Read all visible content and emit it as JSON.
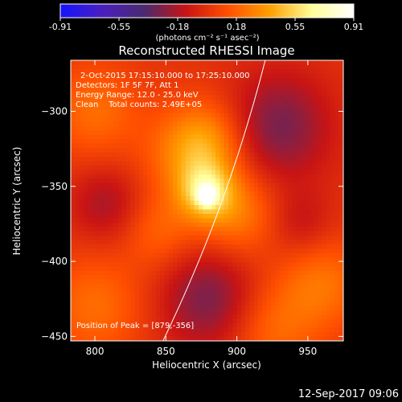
{
  "colorbar": {
    "ticks": [
      "-0.91",
      "-0.55",
      "-0.18",
      "0.18",
      "0.55",
      "0.91"
    ],
    "unit_label": "(photons cm⁻² s⁻¹ asec⁻²)",
    "range": [
      -0.91,
      0.91
    ],
    "stops": [
      "#1414ff",
      "#4a1fbe",
      "#4a2a70",
      "#c81414",
      "#ff5000",
      "#ffa000",
      "#ffff9a",
      "#ffffff"
    ]
  },
  "chart_data": {
    "type": "heatmap",
    "title": "Reconstructed RHESSI Image",
    "xlabel": "Heliocentric X (arcsec)",
    "ylabel": "Heliocentric Y (arcsec)",
    "xlim": [
      783,
      975
    ],
    "ylim": [
      -453,
      -266
    ],
    "xticks": [
      800,
      850,
      900,
      950
    ],
    "yticks": [
      -300,
      -350,
      -400,
      -450
    ],
    "xtick_labels": [
      "800",
      "850",
      "900",
      "950"
    ],
    "ytick_labels": [
      "−300",
      "−350",
      "−400",
      "−450"
    ],
    "peak": {
      "x": 879,
      "y": -356,
      "value": 0.91
    },
    "annotations": [
      "2-Oct-2015 17:15:10.000 to 17:25:10.000",
      "Detectors: 1F 5F 7F, Att 1",
      "Energy Range: 12.0 - 25.0 keV",
      "Clean    Total counts: 2.49E+05"
    ],
    "peak_label": "Position of Peak = [879,-356]",
    "components": [
      {
        "kind": "core",
        "x": 879,
        "y": -356,
        "amplitude": 0.8,
        "sigma": 4
      },
      {
        "kind": "bright halo",
        "x": 878,
        "y": -354,
        "amplitude": 0.42,
        "sigma": 13
      },
      {
        "kind": "red ridge",
        "x": 868,
        "y": -330,
        "amplitude": 0.3,
        "sigma": 22
      },
      {
        "kind": "red ridge",
        "x": 900,
        "y": -368,
        "amplitude": 0.27,
        "sigma": 20
      },
      {
        "kind": "red ridge",
        "x": 880,
        "y": -318,
        "amplitude": 0.2,
        "sigma": 18
      },
      {
        "kind": "red ridge",
        "x": 845,
        "y": -380,
        "amplitude": 0.18,
        "sigma": 18
      },
      {
        "kind": "red edge",
        "x": 800,
        "y": -300,
        "amplitude": 0.22,
        "sigma": 22
      },
      {
        "kind": "red edge",
        "x": 800,
        "y": -430,
        "amplitude": 0.22,
        "sigma": 24
      },
      {
        "kind": "red edge",
        "x": 960,
        "y": -415,
        "amplitude": 0.24,
        "sigma": 22
      },
      {
        "kind": "red edge",
        "x": 925,
        "y": -445,
        "amplitude": 0.2,
        "sigma": 22
      },
      {
        "kind": "negative lobe",
        "x": 930,
        "y": -310,
        "amplitude": -0.3,
        "sigma": 26
      },
      {
        "kind": "negative lobe",
        "x": 880,
        "y": -425,
        "amplitude": -0.3,
        "sigma": 24
      },
      {
        "kind": "negative lobe",
        "x": 808,
        "y": -362,
        "amplitude": -0.2,
        "sigma": 18
      },
      {
        "kind": "negative lobe",
        "x": 945,
        "y": -375,
        "amplitude": -0.15,
        "sigma": 16
      }
    ],
    "limb_curve": [
      [
        920,
        -266
      ],
      [
        900,
        -340
      ],
      [
        875,
        -400
      ],
      [
        848,
        -453
      ]
    ]
  },
  "footer": {
    "timestamp": "12-Sep-2017 09:06"
  }
}
